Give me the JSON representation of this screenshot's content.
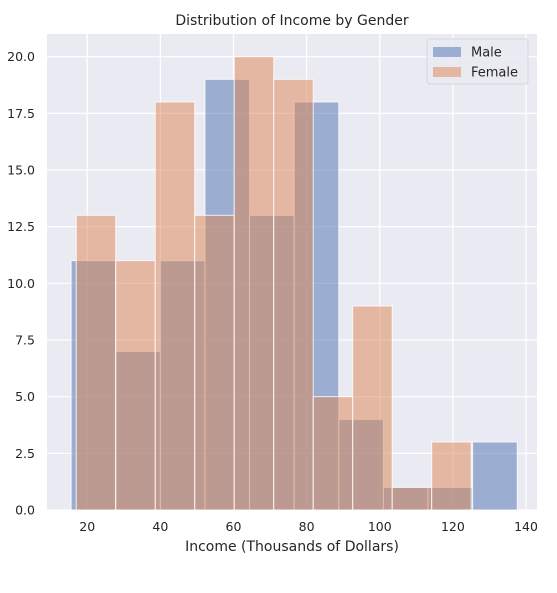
{
  "chart_data": {
    "type": "bar",
    "subtype": "histogram-overlay",
    "title": "Distribution of Income by Gender",
    "xlabel": "Income (Thousands of Dollars)",
    "ylabel": "",
    "xlim": [
      9,
      143
    ],
    "ylim": [
      0,
      21
    ],
    "xticks": [
      20,
      40,
      60,
      80,
      100,
      120,
      140
    ],
    "yticks": [
      0.0,
      2.5,
      5.0,
      7.5,
      10.0,
      12.5,
      15.0,
      17.5,
      20.0
    ],
    "grid": true,
    "legend_position": "top-right",
    "series": [
      {
        "name": "Male",
        "color": "#4c72b0",
        "alpha": 0.5,
        "bin_edges": [
          15.6,
          27.8,
          40.0,
          52.2,
          64.4,
          76.6,
          88.8,
          101.0,
          113.2,
          125.4,
          137.6
        ],
        "counts": [
          11,
          7,
          11,
          19,
          13,
          18,
          4,
          1,
          1,
          3
        ]
      },
      {
        "name": "Female",
        "color": "#dd8452",
        "alpha": 0.5,
        "bin_edges": [
          17.0,
          27.8,
          38.6,
          49.4,
          60.2,
          71.0,
          81.8,
          92.6,
          103.4,
          114.2,
          125.0
        ],
        "counts": [
          13,
          11,
          18,
          13,
          20,
          19,
          5,
          9,
          1,
          3
        ]
      }
    ]
  }
}
